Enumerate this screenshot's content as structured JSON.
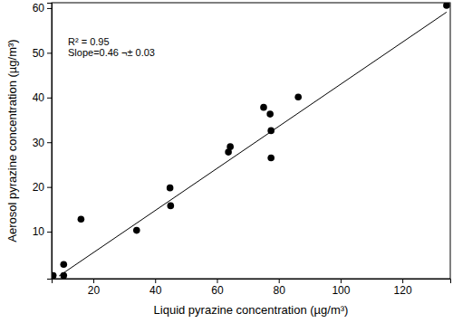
{
  "chart_data": {
    "type": "scatter",
    "x_label": "Liquid pyrazine concentration (µg/m³)",
    "y_label": "Aerosol pyrazine concentration (µg/m³)",
    "annotations": [
      "R² = 0.95",
      "Slope=0.46 ¬± 0.03"
    ],
    "xlim": [
      6.5,
      135.5
    ],
    "ylim": [
      -0.5,
      61.2
    ],
    "xticks": [
      20,
      40,
      60,
      80,
      100,
      120
    ],
    "yticks": [
      10,
      20,
      30,
      40,
      50,
      60
    ],
    "series": [
      {
        "type": "scatter",
        "color": "#000000",
        "marker": "circle",
        "x": [
          7.0,
          10.4,
          10.4,
          16.0,
          34.0,
          44.8,
          45.0,
          63.7,
          64.3,
          75.1,
          77.2,
          77.5,
          77.5,
          86.3,
          134.3
        ],
        "values": [
          0.2,
          2.7,
          0.2,
          12.8,
          10.3,
          19.8,
          15.8,
          27.8,
          29.0,
          37.8,
          36.3,
          32.6,
          26.5,
          40.1,
          60.6
        ]
      },
      {
        "type": "line",
        "color": "#000000",
        "line_style": "solid",
        "x": [
          8.9,
          134.3
        ],
        "values": [
          0.1,
          59.1
        ]
      }
    ]
  }
}
